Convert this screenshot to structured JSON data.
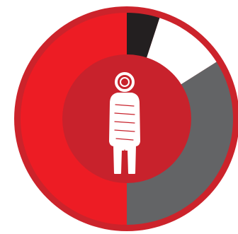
{
  "chart_data": {
    "type": "pie",
    "style": "donut",
    "title": "",
    "categories": [
      "",
      "",
      "",
      ""
    ],
    "values": [
      5,
      11,
      34,
      50
    ],
    "colors": [
      "#231f20",
      "#ffffff",
      "#636466",
      "#ed1c24"
    ],
    "start_angle": "top",
    "direction": "clockwise",
    "legend": "none",
    "grid": false
  },
  "palette": {
    "outer_ring": "#cc232b",
    "center_disc": "#c8222c",
    "figure": "#ffffff"
  },
  "center_icon": "person-icon"
}
